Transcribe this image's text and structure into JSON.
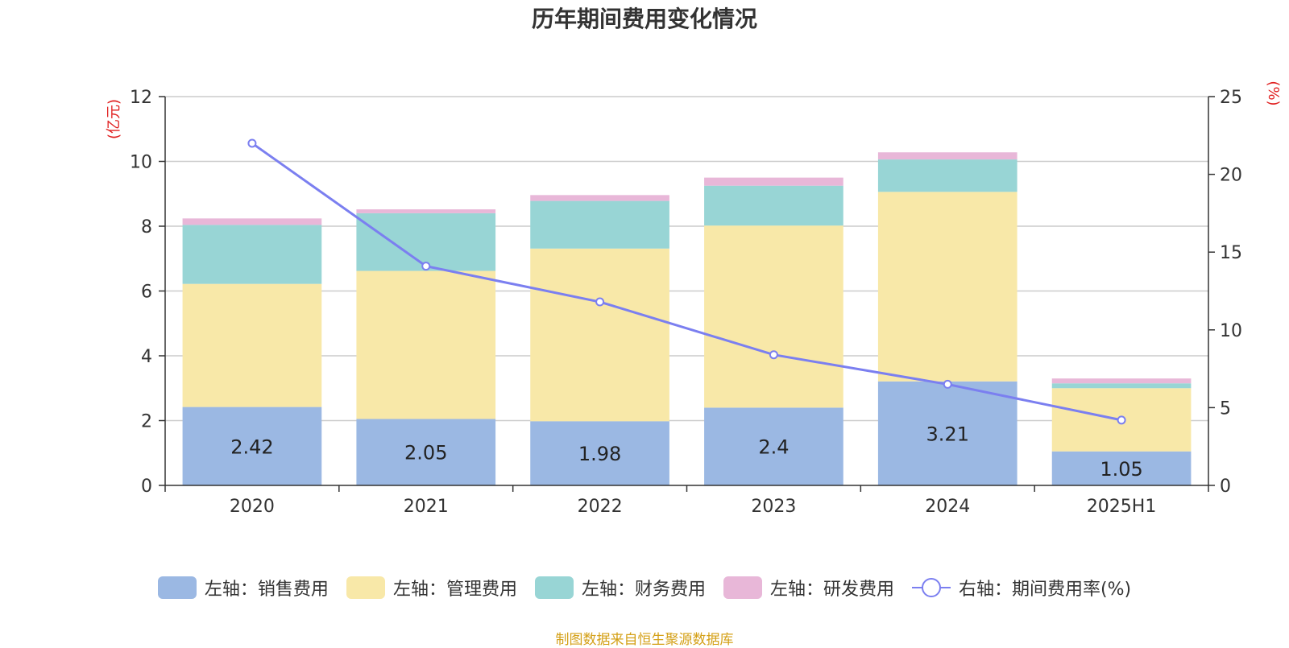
{
  "chart_data": {
    "type": "bar",
    "title": "历年期间费用变化情况",
    "categories": [
      "2020",
      "2021",
      "2022",
      "2023",
      "2024",
      "2025H1"
    ],
    "y_left": {
      "unit_label": "(亿元)",
      "min": 0,
      "max": 12,
      "ticks": [
        0,
        2,
        4,
        6,
        8,
        10,
        12
      ]
    },
    "y_right": {
      "unit_label": "(%)",
      "min": 0,
      "max": 25,
      "ticks": [
        0,
        5,
        10,
        15,
        20,
        25
      ]
    },
    "grid": true,
    "legend_position": "bottom",
    "series": [
      {
        "name": "左轴：销售费用",
        "type": "bar",
        "axis": "left",
        "color": "#9bb8e3",
        "values": [
          2.42,
          2.05,
          1.98,
          2.4,
          3.21,
          1.05
        ],
        "show_labels": true
      },
      {
        "name": "左轴：管理费用",
        "type": "bar",
        "axis": "left",
        "color": "#f8e8a8",
        "values": [
          3.8,
          4.57,
          5.33,
          5.62,
          5.85,
          1.95
        ]
      },
      {
        "name": "左轴：财务费用",
        "type": "bar",
        "axis": "left",
        "color": "#98d5d5",
        "values": [
          1.82,
          1.78,
          1.47,
          1.23,
          1.0,
          0.15
        ]
      },
      {
        "name": "左轴：研发费用",
        "type": "bar",
        "axis": "left",
        "color": "#e8b7d8",
        "values": [
          0.2,
          0.12,
          0.18,
          0.25,
          0.22,
          0.15
        ]
      },
      {
        "name": "右轴：期间费用率(%)",
        "type": "line",
        "axis": "right",
        "color": "#7b7ff0",
        "values": [
          22.0,
          14.1,
          11.8,
          8.4,
          6.5,
          4.2
        ]
      }
    ],
    "source_note": "制图数据来自恒生聚源数据库"
  }
}
